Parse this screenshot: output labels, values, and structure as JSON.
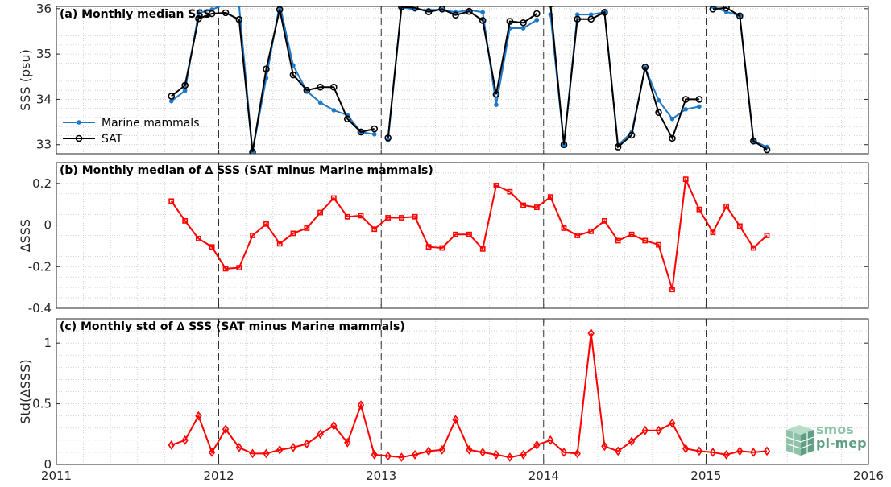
{
  "colors": {
    "marine": "#1f78c8",
    "sat": "#000000",
    "diff": "#ff0000",
    "grid": "#c8c8c8",
    "logo_light": "#8fc3a9",
    "logo_dark": "#5f9e85"
  },
  "logo": {
    "line1": "smos",
    "line2": "pi-mep"
  },
  "chart_data": [
    {
      "type": "line",
      "title": "(a) Monthly median SSS",
      "xlabel": "",
      "ylabel": "SSS (psu)",
      "xlim": [
        2011,
        2016
      ],
      "ylim": [
        32.8,
        36.05
      ],
      "yticks": [
        33,
        34,
        35,
        36
      ],
      "ytick_labels": [
        "33",
        "34",
        "35",
        "36"
      ],
      "grid": true,
      "legend": "lower-left",
      "series": [
        {
          "name": "Marine mammals",
          "marker": "dot",
          "color": "#1f78c8",
          "segments": [
            {
              "x": [
                2011.708,
                2011.792,
                2011.875,
                2011.958,
                2012.042,
                2012.125,
                2012.208,
                2012.292,
                2012.375,
                2012.458,
                2012.542,
                2012.625,
                2012.708,
                2012.792,
                2012.875,
                2012.958
              ],
              "y": [
                33.96,
                34.19,
                35.9,
                35.98,
                36.1,
                36.07,
                32.85,
                34.47,
                36.1,
                34.75,
                34.18,
                33.93,
                33.76,
                33.65,
                33.28,
                33.23
              ]
            },
            {
              "x": [
                2013.042,
                2013.125,
                2013.208,
                2013.292,
                2013.375,
                2013.458,
                2013.542,
                2013.625,
                2013.708,
                2013.792,
                2013.875,
                2013.958
              ],
              "y": [
                33.1,
                36.03,
                35.98,
                35.97,
                35.98,
                35.92,
                35.97,
                35.92,
                33.88,
                35.57,
                35.57,
                35.75
              ]
            },
            {
              "x": [
                2014.042,
                2014.125,
                2014.208,
                2014.292,
                2014.375,
                2014.458,
                2014.542,
                2014.625,
                2014.708,
                2014.792,
                2014.875,
                2014.958
              ],
              "y": [
                35.87,
                33.0,
                35.87,
                35.87,
                35.92,
                32.99,
                33.27,
                34.7,
                33.98,
                33.57,
                33.78,
                33.84
              ]
            },
            {
              "x": [
                2015.042,
                2015.125,
                2015.208,
                2015.292,
                2015.375
              ],
              "y": [
                36.05,
                35.93,
                35.85,
                33.08,
                32.95
              ]
            }
          ]
        },
        {
          "name": "SAT",
          "marker": "circle",
          "color": "#000000",
          "segments": [
            {
              "x": [
                2011.708,
                2011.792,
                2011.875,
                2011.958,
                2012.042,
                2012.125,
                2012.208,
                2012.292,
                2012.375,
                2012.458,
                2012.542,
                2012.625,
                2012.708,
                2012.792,
                2012.875,
                2012.958
              ],
              "y": [
                34.07,
                34.31,
                35.78,
                35.89,
                35.91,
                35.76,
                32.84,
                34.67,
                35.98,
                34.54,
                34.2,
                34.27,
                34.27,
                33.57,
                33.28,
                33.35
              ]
            },
            {
              "x": [
                2013.042,
                2013.125,
                2013.208,
                2013.292,
                2013.375,
                2013.458,
                2013.542,
                2013.625,
                2013.708,
                2013.792,
                2013.875,
                2013.958
              ],
              "y": [
                33.15,
                36.04,
                36.02,
                35.93,
                35.99,
                35.86,
                35.94,
                35.74,
                34.11,
                35.72,
                35.69,
                35.89
              ]
            },
            {
              "x": [
                2014.042,
                2014.125,
                2014.208,
                2014.292,
                2014.375,
                2014.458,
                2014.542,
                2014.625,
                2014.708,
                2014.792,
                2014.875,
                2014.958
              ],
              "y": [
                36.1,
                33.0,
                35.77,
                35.77,
                35.92,
                32.95,
                33.21,
                34.71,
                33.71,
                33.14,
                34.0,
                34.0
              ]
            },
            {
              "x": [
                2015.042,
                2015.125,
                2015.208,
                2015.292,
                2015.375
              ],
              "y": [
                35.99,
                36.02,
                35.84,
                33.08,
                32.89
              ]
            }
          ]
        }
      ]
    },
    {
      "type": "line",
      "title": "(b) Monthly median of ∆ SSS (SAT minus Marine mammals)",
      "xlabel": "",
      "ylabel": "∆SSS",
      "xlim": [
        2011,
        2016
      ],
      "ylim": [
        -0.4,
        0.3
      ],
      "yticks": [
        -0.4,
        -0.2,
        0,
        0.2
      ],
      "ytick_labels": [
        "-0.4",
        "-0.2",
        "0",
        "0.2"
      ],
      "zero_line": true,
      "grid": true,
      "series": [
        {
          "marker": "square",
          "color": "#ff0000",
          "x": [
            2011.708,
            2011.792,
            2011.875,
            2011.958,
            2012.042,
            2012.125,
            2012.208,
            2012.292,
            2012.375,
            2012.458,
            2012.542,
            2012.625,
            2012.708,
            2012.792,
            2012.875,
            2012.958,
            2013.042,
            2013.125,
            2013.208,
            2013.292,
            2013.375,
            2013.458,
            2013.542,
            2013.625,
            2013.708,
            2013.792,
            2013.875,
            2013.958,
            2014.042,
            2014.125,
            2014.208,
            2014.292,
            2014.375,
            2014.458,
            2014.542,
            2014.625,
            2014.708,
            2014.792,
            2014.875,
            2014.958,
            2015.042,
            2015.125,
            2015.208,
            2015.292,
            2015.375
          ],
          "y": [
            0.115,
            0.02,
            -0.065,
            -0.105,
            -0.21,
            -0.205,
            -0.05,
            0.005,
            -0.09,
            -0.04,
            -0.015,
            0.06,
            0.13,
            0.04,
            0.045,
            -0.02,
            0.035,
            0.035,
            0.04,
            -0.105,
            -0.11,
            -0.045,
            -0.045,
            -0.115,
            0.19,
            0.16,
            0.095,
            0.085,
            0.135,
            -0.015,
            -0.05,
            -0.03,
            0.02,
            -0.075,
            -0.045,
            -0.075,
            -0.095,
            -0.31,
            0.22,
            0.075,
            -0.035,
            0.09,
            -0.005,
            -0.11,
            -0.05
          ]
        }
      ]
    },
    {
      "type": "line",
      "title": "(c) Monthly std of ∆ SSS (SAT minus Marine mammals)",
      "xlabel": "",
      "ylabel": "Std(∆SSS)",
      "xlim": [
        2011,
        2016
      ],
      "ylim": [
        0,
        1.2
      ],
      "yticks": [
        0,
        0.5,
        1
      ],
      "ytick_labels": [
        "0",
        "0.5",
        "1"
      ],
      "xticks": [
        2011,
        2012,
        2013,
        2014,
        2015,
        2016
      ],
      "xtick_labels": [
        "2011",
        "2012",
        "2013",
        "2014",
        "2015",
        "2016"
      ],
      "grid": true,
      "series": [
        {
          "marker": "diamond",
          "color": "#ff0000",
          "x": [
            2011.708,
            2011.792,
            2011.875,
            2011.958,
            2012.042,
            2012.125,
            2012.208,
            2012.292,
            2012.375,
            2012.458,
            2012.542,
            2012.625,
            2012.708,
            2012.792,
            2012.875,
            2012.958,
            2013.042,
            2013.125,
            2013.208,
            2013.292,
            2013.375,
            2013.458,
            2013.542,
            2013.625,
            2013.708,
            2013.792,
            2013.875,
            2013.958,
            2014.042,
            2014.125,
            2014.208,
            2014.292,
            2014.375,
            2014.458,
            2014.542,
            2014.625,
            2014.708,
            2014.792,
            2014.875,
            2014.958,
            2015.042,
            2015.125,
            2015.208,
            2015.292,
            2015.375
          ],
          "y": [
            0.16,
            0.2,
            0.4,
            0.1,
            0.29,
            0.14,
            0.09,
            0.09,
            0.12,
            0.14,
            0.17,
            0.25,
            0.32,
            0.18,
            0.49,
            0.08,
            0.07,
            0.06,
            0.08,
            0.11,
            0.12,
            0.37,
            0.12,
            0.1,
            0.08,
            0.06,
            0.08,
            0.16,
            0.2,
            0.1,
            0.09,
            1.08,
            0.15,
            0.11,
            0.19,
            0.28,
            0.28,
            0.34,
            0.13,
            0.11,
            0.1,
            0.08,
            0.11,
            0.1,
            0.11
          ]
        }
      ]
    }
  ]
}
